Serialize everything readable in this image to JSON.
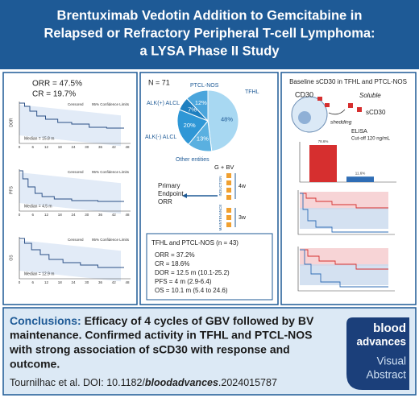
{
  "header": {
    "title_lines": [
      "Brentuximab Vedotin Addition to Gemcitabine in",
      "Relapsed or Refractory Peripheral T-cell Lymphoma:",
      "a LYSA Phase II Study"
    ]
  },
  "left_panel": {
    "orr": "ORR = 47.5%",
    "cr": "CR = 19.7%",
    "legend": [
      "Censored",
      "95% Confidence Limits"
    ],
    "x_ticks": [
      "0",
      "6",
      "12",
      "18",
      "24",
      "30",
      "36",
      "42",
      "48"
    ],
    "plots": [
      {
        "label": "DOR",
        "median": "Median = 15.8 m"
      },
      {
        "label": "PFS",
        "median": "Median = 4.5 m"
      },
      {
        "label": "OS",
        "median": "Median = 12.9 m"
      }
    ]
  },
  "middle_panel": {
    "n": "N = 71",
    "pie": {
      "type": "pie",
      "categories": [
        "TFHL",
        "Other entities",
        "ALK(-) ALCL",
        "ALK(+) ALCL",
        "PTCL-NOS"
      ],
      "values": [
        48,
        13,
        20,
        7,
        12
      ],
      "value_labels": [
        "48%",
        "13%",
        "20%",
        "7%",
        "12%"
      ],
      "colors": [
        "#a8d8f2",
        "#5ab0e0",
        "#2f97d6",
        "#1e7fc0",
        "#4aa5dc"
      ]
    },
    "schema": {
      "regimen": "G + BV",
      "induction": "INDUCTION",
      "induction_interval": "4w",
      "maintenance": "MAINTENANCE",
      "maintenance_interval": "3w",
      "endpoint_lines": [
        "Primary",
        "Endpoint",
        "ORR"
      ]
    },
    "subgroup": {
      "title": "TFHL and PTCL-NOS (n = 43)",
      "items": [
        "ORR = 37.2%",
        "CR = 18.6%",
        "DOR = 12.5 m (10.1-25.2)",
        "PFS = 4 m (2.9-6.4)",
        "OS = 10.1 m (5.4 to 24.6)"
      ]
    }
  },
  "right_panel": {
    "title": "Baseline sCD30 in TFHL and PTCL-NOS",
    "diagram": {
      "cd30": "CD30",
      "soluble": "Soluble",
      "scd30": "sCD30",
      "shedding": "shedding",
      "elisa": "ELISA",
      "cutoff": "Cut-off 120 ng/mL"
    },
    "bars": {
      "type": "bar",
      "values": [
        78.6,
        11.6
      ],
      "value_labels": [
        "78.6%",
        "11.6%"
      ],
      "colors": [
        "#d62f2f",
        "#2f6db5"
      ]
    }
  },
  "conclusions": {
    "label": "Conclusions:",
    "lines": [
      "Efficacy of 4 cycles of GBV followed by BV",
      "maintenance. Confirmed activity in TFHL and PTCL-NOS",
      "with strong association of sCD30 with response and",
      "outcome."
    ]
  },
  "citation": {
    "prefix": "Tournilhac et al. DOI: 10.1182/",
    "journal": "bloodadvances",
    "suffix": ".2024015787"
  },
  "logo": {
    "lines": [
      "blood",
      "advances",
      "Visual",
      "Abstract"
    ]
  }
}
